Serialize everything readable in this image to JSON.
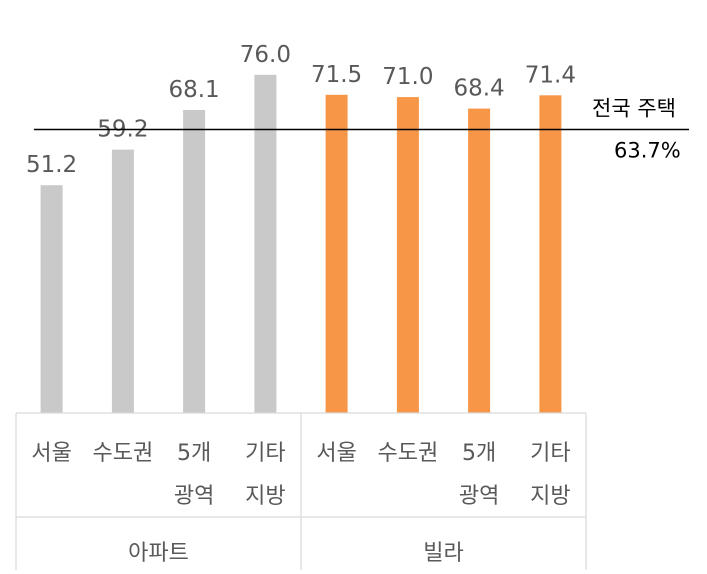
{
  "chart_data": {
    "type": "bar",
    "categories": [
      [
        "서울"
      ],
      [
        "수도권"
      ],
      [
        "5개",
        "광역"
      ],
      [
        "기타",
        "지방"
      ],
      [
        "서울"
      ],
      [
        "수도권"
      ],
      [
        "5개",
        "광역"
      ],
      [
        "기타",
        "지방"
      ]
    ],
    "groups": [
      {
        "label": "아파트",
        "color": "#C9C9C9",
        "values": [
          51.2,
          59.2,
          68.1,
          76.0
        ]
      },
      {
        "label": "빌라",
        "color": "#F79646",
        "values": [
          71.5,
          71.0,
          68.4,
          71.4
        ]
      }
    ],
    "value_labels": [
      "51.2",
      "59.2",
      "68.1",
      "76.0",
      "71.5",
      "71.0",
      "68.4",
      "71.4"
    ],
    "reference_line": {
      "value": 63.7,
      "label_line1": "전국 주택",
      "label_line2": "63.7%",
      "color": "#000000"
    },
    "ylim": [
      0,
      84
    ],
    "grid": false,
    "legend": "none"
  }
}
